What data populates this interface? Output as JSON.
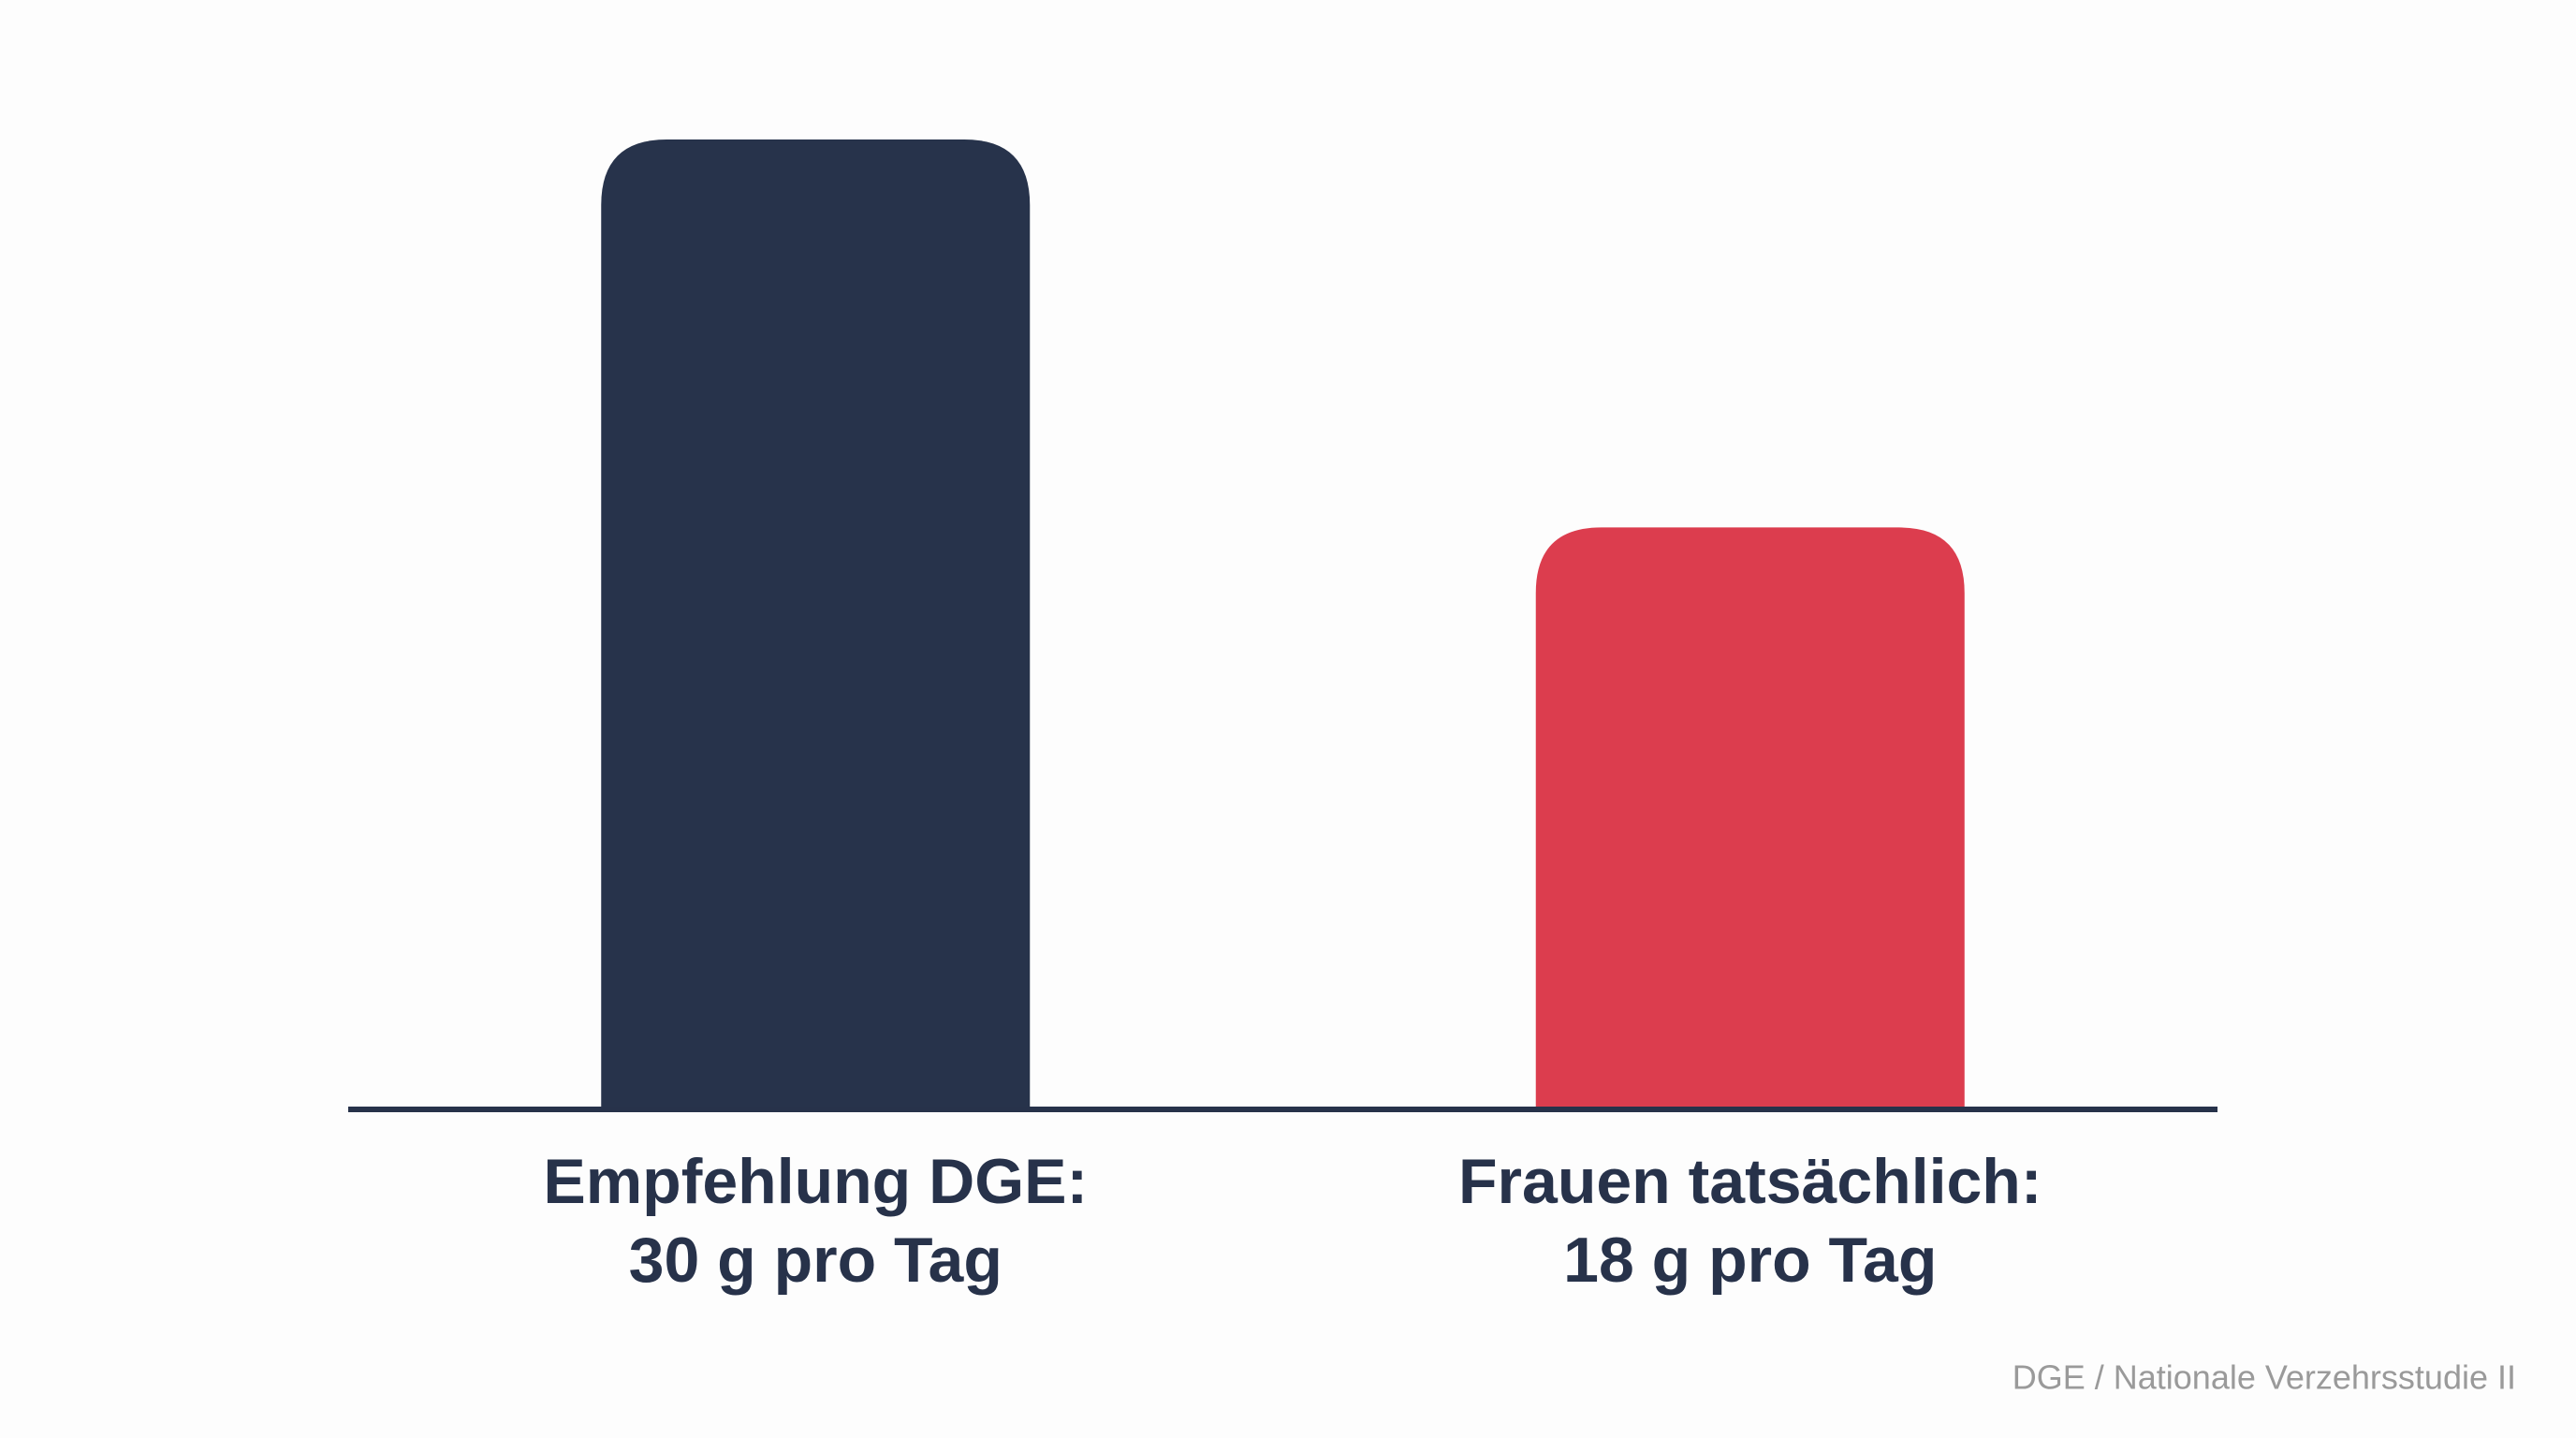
{
  "chart_data": {
    "type": "bar",
    "categories": [
      "Empfehlung DGE:",
      "Frauen tatsächlich:"
    ],
    "values": [
      30,
      18
    ],
    "value_labels": [
      "30 g pro Tag",
      "18 g pro Tag"
    ],
    "colors": [
      "#27334b",
      "#dc3d4e"
    ],
    "source": "DGE / Nationale Verzehrsstudie II"
  }
}
